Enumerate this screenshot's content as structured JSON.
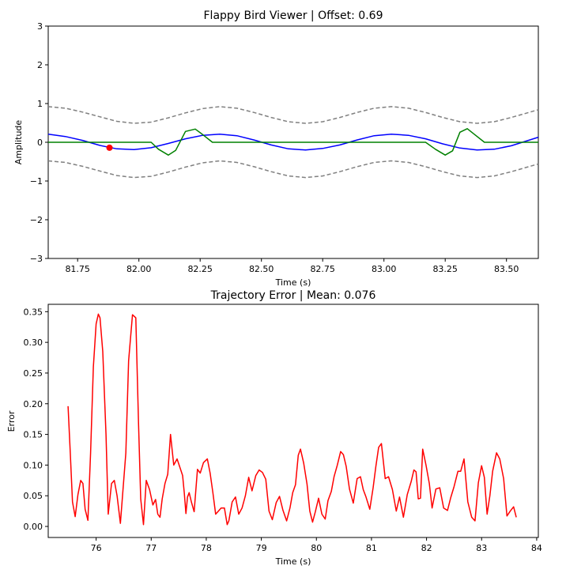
{
  "chart_data": [
    {
      "type": "line",
      "title": "Flappy Bird Viewer | Offset: 0.69",
      "xlabel": "Time (s)",
      "ylabel": "Amplitude",
      "xlim": [
        81.63,
        83.63
      ],
      "ylim": [
        -3,
        3
      ],
      "xticks": [
        "81.75",
        "82.00",
        "82.25",
        "82.50",
        "82.75",
        "83.00",
        "83.25",
        "83.50"
      ],
      "yticks": [
        "−3",
        "−2",
        "−1",
        "0",
        "1",
        "2",
        "3"
      ],
      "grid": false,
      "series": [
        {
          "color": "#0000ff",
          "style": "solid",
          "x": [
            81.63,
            81.7,
            81.77,
            81.84,
            81.91,
            81.98,
            82.05,
            82.12,
            82.19,
            82.26,
            82.33,
            82.4,
            82.47,
            82.54,
            82.61,
            82.68,
            82.75,
            82.82,
            82.89,
            82.96,
            83.03,
            83.1,
            83.17,
            83.24,
            83.31,
            83.38,
            83.45,
            83.52,
            83.63
          ],
          "y": [
            0.21,
            0.15,
            0.05,
            -0.08,
            -0.17,
            -0.19,
            -0.14,
            -0.03,
            0.09,
            0.18,
            0.21,
            0.17,
            0.06,
            -0.07,
            -0.17,
            -0.2,
            -0.16,
            -0.07,
            0.06,
            0.17,
            0.21,
            0.18,
            0.09,
            -0.04,
            -0.15,
            -0.2,
            -0.18,
            -0.09,
            0.13
          ]
        },
        {
          "color": "#008000",
          "style": "solid",
          "x": [
            81.63,
            82.05,
            82.08,
            82.12,
            82.15,
            82.19,
            82.23,
            82.26,
            82.3,
            82.4,
            82.6,
            82.8,
            83.0,
            83.17,
            83.21,
            83.25,
            83.28,
            83.31,
            83.34,
            83.37,
            83.41,
            83.63
          ],
          "y": [
            0,
            0,
            -0.18,
            -0.33,
            -0.21,
            0.28,
            0.34,
            0.2,
            0,
            0,
            0,
            0,
            0,
            0,
            -0.18,
            -0.33,
            -0.22,
            0.26,
            0.35,
            0.2,
            0,
            0
          ]
        },
        {
          "color": "#808080",
          "style": "dashed",
          "x": [
            81.63,
            81.7,
            81.77,
            81.84,
            81.91,
            81.98,
            82.05,
            82.12,
            82.19,
            82.26,
            82.33,
            82.4,
            82.47,
            82.54,
            82.61,
            82.68,
            82.75,
            82.82,
            82.89,
            82.96,
            83.03,
            83.1,
            83.17,
            83.24,
            83.31,
            83.38,
            83.45,
            83.52,
            83.63
          ],
          "y": [
            0.92,
            0.88,
            0.78,
            0.66,
            0.54,
            0.49,
            0.52,
            0.63,
            0.76,
            0.87,
            0.92,
            0.88,
            0.77,
            0.64,
            0.53,
            0.49,
            0.53,
            0.64,
            0.77,
            0.88,
            0.92,
            0.88,
            0.77,
            0.64,
            0.53,
            0.49,
            0.53,
            0.64,
            0.84
          ]
        },
        {
          "color": "#808080",
          "style": "dashed",
          "x": [
            81.63,
            81.7,
            81.77,
            81.84,
            81.91,
            81.98,
            82.05,
            82.12,
            82.19,
            82.26,
            82.33,
            82.4,
            82.47,
            82.54,
            82.61,
            82.68,
            82.75,
            82.82,
            82.89,
            82.96,
            83.03,
            83.1,
            83.17,
            83.24,
            83.31,
            83.38,
            83.45,
            83.52,
            83.63
          ],
          "y": [
            -0.48,
            -0.52,
            -0.62,
            -0.74,
            -0.86,
            -0.91,
            -0.88,
            -0.77,
            -0.64,
            -0.53,
            -0.48,
            -0.52,
            -0.63,
            -0.76,
            -0.87,
            -0.91,
            -0.87,
            -0.76,
            -0.63,
            -0.52,
            -0.48,
            -0.52,
            -0.63,
            -0.76,
            -0.87,
            -0.91,
            -0.87,
            -0.76,
            -0.56
          ]
        }
      ],
      "marker": {
        "x": 81.88,
        "y": -0.14,
        "color": "#ff0000"
      }
    },
    {
      "type": "line",
      "title": "Trajectory Error | Mean: 0.076",
      "xlabel": "Time (s)",
      "ylabel": "Error",
      "xlim": [
        75.13,
        84.03
      ],
      "ylim": [
        -0.018,
        0.362
      ],
      "xticks": [
        "76",
        "77",
        "78",
        "79",
        "80",
        "81",
        "82",
        "83",
        "84"
      ],
      "yticks": [
        "0.00",
        "0.05",
        "0.10",
        "0.15",
        "0.20",
        "0.25",
        "0.30",
        "0.35"
      ],
      "grid": false,
      "series": [
        {
          "color": "#ff0000",
          "style": "solid",
          "x": [
            75.49,
            75.53,
            75.57,
            75.62,
            75.67,
            75.72,
            75.76,
            75.8,
            75.85,
            75.9,
            75.95,
            76.0,
            76.04,
            76.07,
            76.12,
            76.18,
            76.22,
            76.28,
            76.33,
            76.38,
            76.44,
            76.48,
            76.54,
            76.59,
            76.66,
            76.72,
            76.77,
            76.81,
            76.86,
            76.91,
            76.97,
            77.03,
            77.08,
            77.12,
            77.16,
            77.2,
            77.25,
            77.3,
            77.35,
            77.41,
            77.47,
            77.53,
            77.57,
            77.6,
            77.63,
            77.66,
            77.69,
            77.73,
            77.78,
            77.84,
            77.89,
            77.95,
            78.02,
            78.07,
            78.12,
            78.17,
            78.22,
            78.27,
            78.33,
            78.38,
            78.41,
            78.47,
            78.53,
            78.59,
            78.65,
            78.71,
            78.77,
            78.83,
            78.9,
            78.96,
            79.02,
            79.08,
            79.14,
            79.2,
            79.27,
            79.33,
            79.39,
            79.46,
            79.52,
            79.57,
            79.62,
            79.67,
            79.71,
            79.77,
            79.83,
            79.88,
            79.93,
            79.98,
            80.04,
            80.1,
            80.16,
            80.21,
            80.27,
            80.32,
            80.38,
            80.44,
            80.49,
            80.54,
            80.6,
            80.67,
            80.74,
            80.8,
            80.85,
            80.9,
            80.97,
            81.03,
            81.08,
            81.13,
            81.18,
            81.25,
            81.31,
            81.38,
            81.45,
            81.51,
            81.58,
            81.65,
            81.72,
            81.77,
            81.81,
            81.85,
            81.89,
            81.93,
            81.99,
            82.05,
            82.1,
            82.17,
            82.24,
            82.31,
            82.38,
            82.44,
            82.5,
            82.57,
            82.62,
            82.68,
            82.75,
            82.82,
            82.88,
            82.94,
            83.0,
            83.05,
            83.1,
            83.15,
            83.2,
            83.27,
            83.33,
            83.4,
            83.46,
            83.52,
            83.58,
            83.63
          ],
          "y": [
            0.196,
            0.12,
            0.04,
            0.016,
            0.052,
            0.075,
            0.07,
            0.028,
            0.01,
            0.12,
            0.26,
            0.33,
            0.346,
            0.34,
            0.285,
            0.15,
            0.02,
            0.07,
            0.075,
            0.05,
            0.005,
            0.05,
            0.12,
            0.27,
            0.345,
            0.34,
            0.17,
            0.045,
            0.003,
            0.075,
            0.06,
            0.035,
            0.044,
            0.02,
            0.015,
            0.045,
            0.07,
            0.085,
            0.15,
            0.1,
            0.11,
            0.094,
            0.083,
            0.055,
            0.021,
            0.048,
            0.055,
            0.04,
            0.024,
            0.093,
            0.087,
            0.104,
            0.11,
            0.087,
            0.055,
            0.02,
            0.025,
            0.03,
            0.03,
            0.003,
            0.009,
            0.04,
            0.048,
            0.02,
            0.03,
            0.05,
            0.08,
            0.058,
            0.083,
            0.092,
            0.088,
            0.077,
            0.025,
            0.011,
            0.039,
            0.049,
            0.027,
            0.009,
            0.03,
            0.055,
            0.068,
            0.116,
            0.126,
            0.103,
            0.069,
            0.025,
            0.007,
            0.024,
            0.046,
            0.02,
            0.012,
            0.042,
            0.057,
            0.081,
            0.1,
            0.122,
            0.117,
            0.098,
            0.061,
            0.038,
            0.078,
            0.081,
            0.06,
            0.048,
            0.028,
            0.063,
            0.098,
            0.129,
            0.135,
            0.078,
            0.081,
            0.06,
            0.025,
            0.048,
            0.015,
            0.052,
            0.073,
            0.092,
            0.089,
            0.045,
            0.046,
            0.126,
            0.1,
            0.07,
            0.03,
            0.061,
            0.063,
            0.03,
            0.026,
            0.047,
            0.065,
            0.09,
            0.09,
            0.11,
            0.04,
            0.015,
            0.009,
            0.071,
            0.099,
            0.08,
            0.02,
            0.05,
            0.09,
            0.12,
            0.11,
            0.078,
            0.017,
            0.025,
            0.032,
            0.015
          ]
        }
      ]
    }
  ]
}
